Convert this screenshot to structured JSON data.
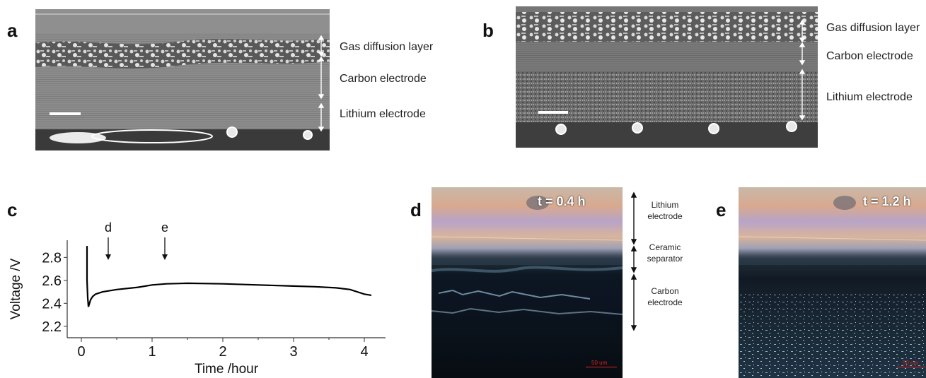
{
  "panels": {
    "a": {
      "letter": "a",
      "labels": [
        "Gas diffusion layer",
        "Carbon electrode",
        "Lithium electrode"
      ]
    },
    "b": {
      "letter": "b",
      "labels": [
        "Gas diffusion layer",
        "Carbon electrode",
        "Lithium electrode"
      ]
    },
    "c": {
      "letter": "c"
    },
    "d": {
      "letter": "d",
      "time_label": "t = 0.4 h",
      "scale_label": "50 um",
      "labels": [
        "Lithium\nelectrode",
        "Ceramic\nseparator",
        "Carbon\nelectrode"
      ]
    },
    "e": {
      "letter": "e",
      "time_label": "t = 1.2 h",
      "scale_label": "50 um"
    }
  },
  "chart_data": {
    "type": "line",
    "xlabel": "Time /hour",
    "ylabel": "Voltage /V",
    "xlim": [
      -0.2,
      4.3
    ],
    "ylim": [
      2.1,
      2.95
    ],
    "xticks": [
      0,
      1,
      2,
      3,
      4
    ],
    "yticks": [
      2.2,
      2.4,
      2.6,
      2.8
    ],
    "annotations": [
      {
        "text": "d",
        "x": 0.38
      },
      {
        "text": "e",
        "x": 1.18
      }
    ],
    "series": [
      {
        "x": [
          0.08,
          0.08,
          0.09,
          0.1,
          0.11,
          0.13,
          0.16,
          0.2,
          0.3,
          0.5,
          0.8,
          1.0,
          1.2,
          1.5,
          2.0,
          2.5,
          3.0,
          3.3,
          3.6,
          3.8,
          4.0,
          4.1
        ],
        "y": [
          2.9,
          2.6,
          2.45,
          2.37,
          2.39,
          2.43,
          2.46,
          2.48,
          2.5,
          2.52,
          2.54,
          2.56,
          2.57,
          2.575,
          2.57,
          2.56,
          2.55,
          2.545,
          2.535,
          2.52,
          2.48,
          2.47
        ]
      }
    ]
  }
}
